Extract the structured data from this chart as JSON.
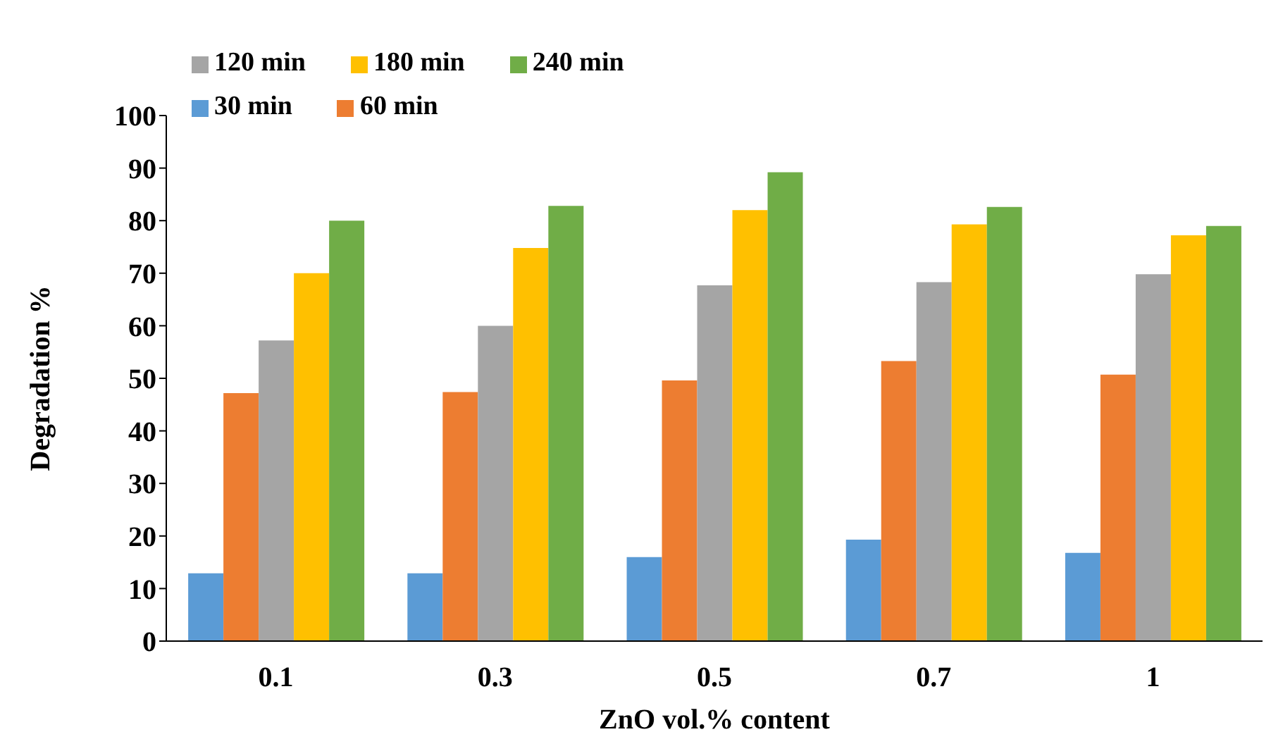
{
  "chart_data": {
    "type": "bar",
    "xlabel": "ZnO vol.% content",
    "ylabel": "Degradation %",
    "categories": [
      "0.1",
      "0.3",
      "0.5",
      "0.7",
      "1"
    ],
    "series": [
      {
        "name": "30 min",
        "color": "#5b9bd5",
        "values": [
          12.9,
          12.9,
          16,
          19.3,
          16.8
        ]
      },
      {
        "name": "60 min",
        "color": "#ed7d31",
        "values": [
          47.2,
          47.4,
          49.6,
          53.3,
          50.7
        ]
      },
      {
        "name": "120 min",
        "color": "#a5a5a5",
        "values": [
          57.2,
          60,
          67.7,
          68.3,
          69.8
        ]
      },
      {
        "name": "180 min",
        "color": "#ffc000",
        "values": [
          70,
          74.8,
          82,
          79.3,
          77.2
        ]
      },
      {
        "name": "240 min",
        "color": "#70ad47",
        "values": [
          80,
          82.8,
          89.2,
          82.6,
          79
        ]
      }
    ],
    "ylim": [
      0,
      100
    ],
    "yticks": [
      0,
      10,
      20,
      30,
      40,
      50,
      60,
      70,
      80,
      90,
      100
    ],
    "grid": false,
    "legend": "top left"
  }
}
